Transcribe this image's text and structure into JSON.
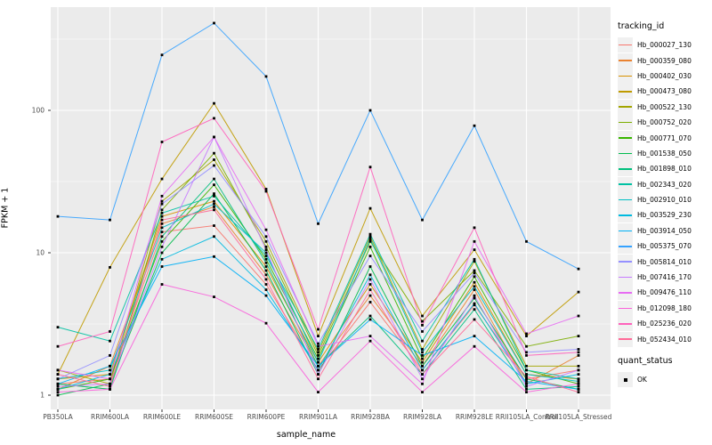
{
  "chart_data": {
    "type": "line",
    "title": "",
    "xlabel": "sample_name",
    "ylabel": "FPKM + 1",
    "y_scale": "log10",
    "ylim": [
      1,
      530
    ],
    "grid": "on",
    "panel_bg": "#EBEBEB",
    "grid_color": "#FFFFFF",
    "point_marker": "black-square",
    "y_ticks": [
      {
        "label": "1",
        "value": 1
      },
      {
        "label": "10",
        "value": 10
      },
      {
        "label": "100",
        "value": 100
      }
    ],
    "x_categories": [
      "PB350LA",
      "RRIM600LA",
      "RRIM600LE",
      "RRIM600SE",
      "RRIM600PE",
      "RRIM901LA",
      "RRIM928BA",
      "RRIM928LA",
      "RRIM928LE",
      "RRII105LA_Control",
      "RRII105LA_Stressed"
    ],
    "legend": {
      "series_title": "tracking_id",
      "shape_title": "quant_status",
      "shape_label": "OK",
      "position": "right"
    },
    "series": [
      {
        "name": "Hb_000027_130",
        "color": "#F8766D",
        "values": [
          1.2,
          1.3,
          14,
          15.5,
          6,
          1.5,
          4.5,
          1.5,
          4.3,
          1.3,
          1.5
        ]
      },
      {
        "name": "Hb_000359_080",
        "color": "#EA8331",
        "values": [
          1.1,
          1.6,
          16,
          21,
          7,
          1.6,
          5,
          1.6,
          5.5,
          1.2,
          1.9
        ]
      },
      {
        "name": "Hb_000402_030",
        "color": "#D89000",
        "values": [
          1.3,
          1.4,
          18,
          23,
          8,
          1.7,
          6,
          1.7,
          6.2,
          1.4,
          1.3
        ]
      },
      {
        "name": "Hb_000473_080",
        "color": "#C09B00",
        "values": [
          1.4,
          7.9,
          33,
          112,
          28,
          2.6,
          20.5,
          3.6,
          10.5,
          2.6,
          5.3
        ]
      },
      {
        "name": "Hb_000522_130",
        "color": "#A3A500",
        "values": [
          1.5,
          1.2,
          23,
          45,
          12,
          2.0,
          13,
          2.1,
          8.7,
          1.6,
          1.6
        ]
      },
      {
        "name": "Hb_000752_020",
        "color": "#7CAE00",
        "values": [
          1.2,
          1.1,
          20,
          50,
          11,
          1.9,
          12,
          3.3,
          7.5,
          2.2,
          2.6
        ]
      },
      {
        "name": "Hb_000771_070",
        "color": "#39B600",
        "values": [
          1.1,
          1.3,
          12,
          30,
          9,
          1.8,
          11,
          1.8,
          6.8,
          1.5,
          1.2
        ]
      },
      {
        "name": "Hb_001538_050",
        "color": "#00BB4E",
        "values": [
          1.0,
          1.2,
          10,
          26,
          7.5,
          1.4,
          8,
          1.6,
          4.8,
          1.3,
          1.1
        ]
      },
      {
        "name": "Hb_001898_010",
        "color": "#00BF7D",
        "values": [
          1.2,
          1.1,
          13,
          33,
          8.5,
          1.6,
          3.6,
          1.4,
          4.0,
          1.1,
          1.15
        ]
      },
      {
        "name": "Hb_002343_020",
        "color": "#00C1A3",
        "values": [
          3.0,
          2.4,
          19,
          25,
          9.5,
          2.1,
          13.5,
          2.4,
          9,
          1.5,
          1.3
        ]
      },
      {
        "name": "Hb_002910_010",
        "color": "#00BFC4",
        "values": [
          1.3,
          1.5,
          15,
          22,
          10,
          1.7,
          12.5,
          2.0,
          5.8,
          1.4,
          1.25
        ]
      },
      {
        "name": "Hb_003529_230",
        "color": "#00BAE0",
        "values": [
          1.1,
          1.4,
          9,
          13,
          5.5,
          1.5,
          7,
          1.5,
          4.4,
          1.2,
          1.4
        ]
      },
      {
        "name": "Hb_003914_050",
        "color": "#00B0F6",
        "values": [
          1.2,
          1.6,
          8,
          9.4,
          5,
          1.6,
          3.4,
          1.9,
          2.6,
          1.25,
          1.1
        ]
      },
      {
        "name": "Hb_005375_070",
        "color": "#35A2FF",
        "values": [
          18,
          17,
          245,
          410,
          173,
          16,
          100,
          17,
          78,
          12,
          7.7
        ]
      },
      {
        "name": "Hb_005814_010",
        "color": "#9590FF",
        "values": [
          1.3,
          1.9,
          22,
          41,
          13,
          2.3,
          9.5,
          2.8,
          7.2,
          2.0,
          2.1
        ]
      },
      {
        "name": "Hb_007416_170",
        "color": "#C77CFF",
        "values": [
          1.15,
          1.2,
          11,
          65,
          10.5,
          1.4,
          6.5,
          1.3,
          5.0,
          1.15,
          1.5
        ]
      },
      {
        "name": "Hb_009476_110",
        "color": "#E76BF3",
        "values": [
          1.5,
          1.3,
          25,
          65,
          14.5,
          2.2,
          2.6,
          1.2,
          12,
          2.7,
          3.6
        ]
      },
      {
        "name": "Hb_012098_180",
        "color": "#FA62DB",
        "values": [
          1.05,
          1.1,
          6,
          4.9,
          3.2,
          1.05,
          2.4,
          1.05,
          2.2,
          1.05,
          1.2
        ]
      },
      {
        "name": "Hb_025236_020",
        "color": "#FF62BC",
        "values": [
          2.2,
          2.8,
          60,
          88,
          27,
          2.9,
          40,
          3.1,
          15,
          1.9,
          2.0
        ]
      },
      {
        "name": "Hb_052434_010",
        "color": "#FF6A98",
        "values": [
          1.4,
          1.15,
          17,
          20,
          6.5,
          1.3,
          5.5,
          1.4,
          3.4,
          1.35,
          1.05
        ]
      }
    ]
  }
}
